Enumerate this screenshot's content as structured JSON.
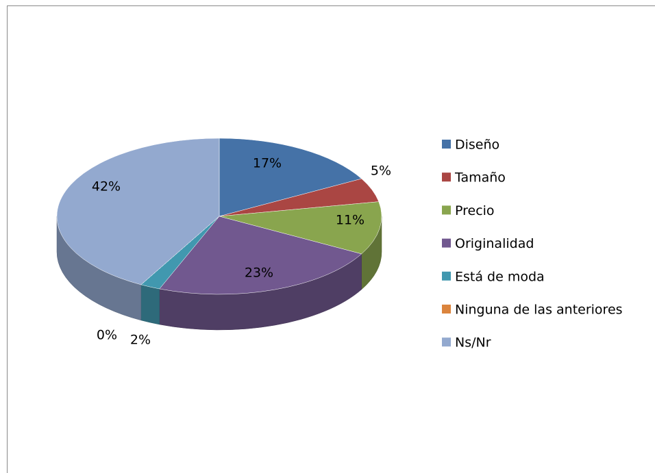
{
  "chart_data": {
    "type": "pie",
    "three_d": true,
    "categories": [
      "Diseño",
      "Tamaño",
      "Precio",
      "Originalidad",
      "Está de moda",
      "Ninguna de las anteriores",
      "Ns/Nr"
    ],
    "values": [
      17,
      5,
      11,
      23,
      2,
      0,
      42
    ],
    "value_labels": [
      "17%",
      "5%",
      "11%",
      "23%",
      "2%",
      "0%",
      "42%"
    ],
    "colors": [
      "#4572A7",
      "#AA4643",
      "#89A54E",
      "#71588F",
      "#4198AF",
      "#DB843D",
      "#93A9CF"
    ],
    "legend": "right"
  }
}
